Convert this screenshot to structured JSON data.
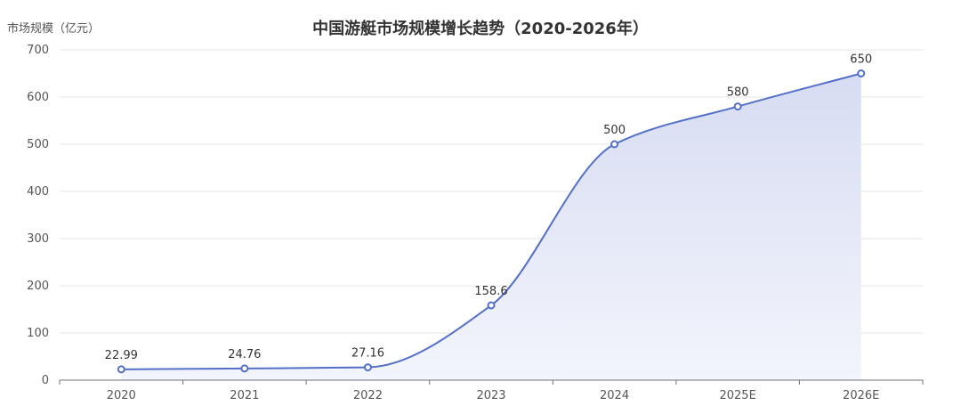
{
  "chart_data": {
    "type": "area",
    "title": "中国游艇市场规模增长趋势（2020-2026年）",
    "ylabel": "市场规模（亿元）",
    "xlabel": "",
    "categories": [
      "2020",
      "2021",
      "2022",
      "2023",
      "2024",
      "2025E",
      "2026E"
    ],
    "series": [
      {
        "values": [
          22.99,
          24.76,
          27.16,
          158.6,
          500,
          580,
          650
        ]
      }
    ],
    "data_labels": [
      "22.99",
      "24.76",
      "27.16",
      "158.6",
      "500",
      "580",
      "650"
    ],
    "ylim": [
      0,
      700
    ],
    "yticks": [
      "0",
      "100",
      "200",
      "300",
      "400",
      "500",
      "600",
      "700"
    ],
    "grid": true,
    "smooth": true,
    "colors": {
      "line": "#5470c6",
      "area_top": "#d6dcf2",
      "area_bottom": "#f3f5fc",
      "grid": "#e6e6e6",
      "axis": "#6e7079"
    }
  }
}
